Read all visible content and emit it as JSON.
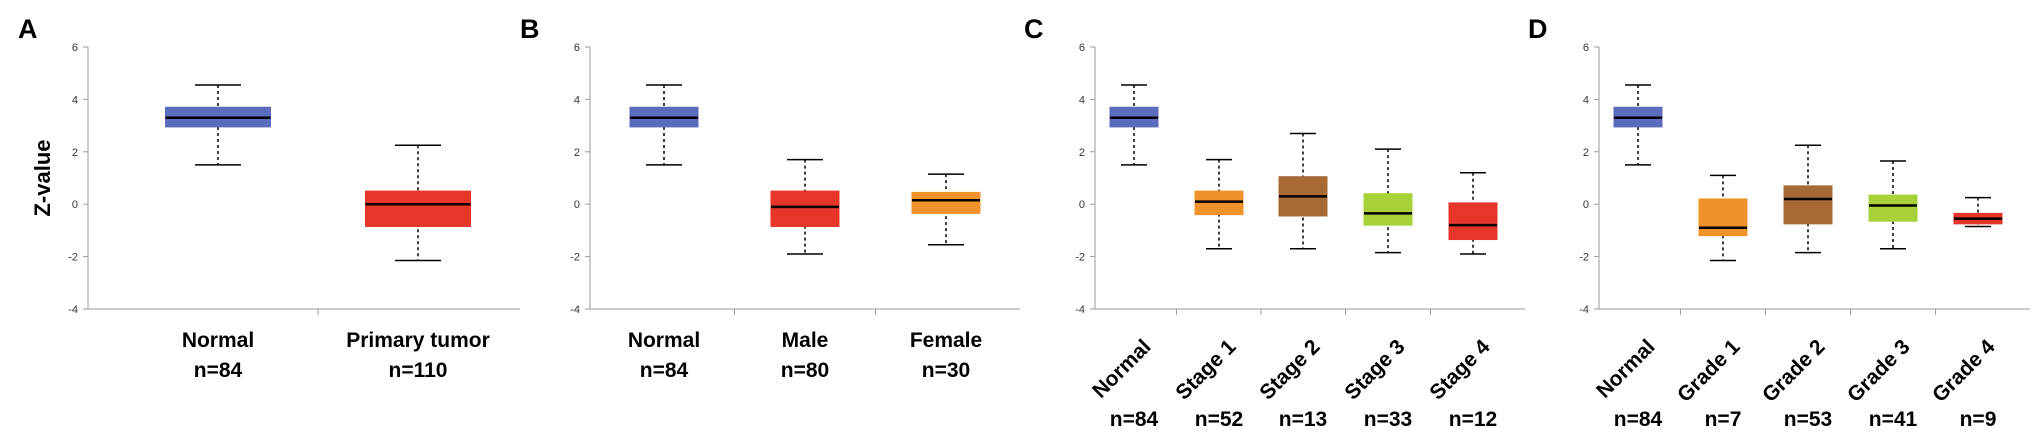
{
  "chart_data": [
    {
      "type": "box",
      "panel": "A",
      "ylabel": "Z-value",
      "ylim": [
        -4,
        6
      ],
      "yticks": [
        "6",
        "4",
        "2",
        "0",
        "-2",
        "-4"
      ],
      "label_rotation": "none",
      "groups": [
        {
          "label": "Normal",
          "n": "n=84",
          "color": "#5b6bbd",
          "min": 1.5,
          "q1": 2.95,
          "median": 3.3,
          "q3": 3.7,
          "max": 4.55
        },
        {
          "label": "Primary tumor",
          "n": "n=110",
          "color": "#e8352a",
          "min": -2.15,
          "q1": -0.85,
          "median": 0.0,
          "q3": 0.5,
          "max": 2.25
        }
      ]
    },
    {
      "type": "box",
      "panel": "B",
      "ylabel": "",
      "ylim": [
        -4,
        6
      ],
      "yticks": [
        "6",
        "4",
        "2",
        "0",
        "-2",
        "-4"
      ],
      "label_rotation": "none",
      "groups": [
        {
          "label": "Normal",
          "n": "n=84",
          "color": "#5b6bbd",
          "min": 1.5,
          "q1": 2.95,
          "median": 3.3,
          "q3": 3.7,
          "max": 4.55
        },
        {
          "label": "Male",
          "n": "n=80",
          "color": "#e8352a",
          "min": -1.9,
          "q1": -0.85,
          "median": -0.1,
          "q3": 0.5,
          "max": 1.7
        },
        {
          "label": "Female",
          "n": "n=30",
          "color": "#f0922b",
          "min": -1.55,
          "q1": -0.35,
          "median": 0.15,
          "q3": 0.45,
          "max": 1.15
        }
      ]
    },
    {
      "type": "box",
      "panel": "C",
      "ylabel": "",
      "ylim": [
        -4,
        6
      ],
      "yticks": [
        "6",
        "4",
        "2",
        "0",
        "-2",
        "-4"
      ],
      "label_rotation": "rotated",
      "groups": [
        {
          "label": "Normal",
          "n": "n=84",
          "color": "#5b6bbd",
          "min": 1.5,
          "q1": 2.95,
          "median": 3.3,
          "q3": 3.7,
          "max": 4.55
        },
        {
          "label": "Stage 1",
          "n": "n=52",
          "color": "#f0922b",
          "min": -1.7,
          "q1": -0.4,
          "median": 0.1,
          "q3": 0.5,
          "max": 1.7
        },
        {
          "label": "Stage 2",
          "n": "n=13",
          "color": "#a86a35",
          "min": -1.7,
          "q1": -0.45,
          "median": 0.3,
          "q3": 1.05,
          "max": 2.7
        },
        {
          "label": "Stage 3",
          "n": "n=33",
          "color": "#a8d13a",
          "min": -1.85,
          "q1": -0.8,
          "median": -0.35,
          "q3": 0.4,
          "max": 2.1
        },
        {
          "label": "Stage 4",
          "n": "n=12",
          "color": "#e8352a",
          "min": -1.9,
          "q1": -1.35,
          "median": -0.8,
          "q3": 0.05,
          "max": 1.2
        }
      ]
    },
    {
      "type": "box",
      "panel": "D",
      "ylabel": "",
      "ylim": [
        -4,
        6
      ],
      "yticks": [
        "6",
        "4",
        "2",
        "0",
        "-2",
        "-4"
      ],
      "label_rotation": "rotated",
      "groups": [
        {
          "label": "Normal",
          "n": "n=84",
          "color": "#5b6bbd",
          "min": 1.5,
          "q1": 2.95,
          "median": 3.3,
          "q3": 3.7,
          "max": 4.55
        },
        {
          "label": "Grade 1",
          "n": "n=7",
          "color": "#f0922b",
          "min": -2.15,
          "q1": -1.2,
          "median": -0.9,
          "q3": 0.2,
          "max": 1.1
        },
        {
          "label": "Grade 2",
          "n": "n=53",
          "color": "#a86a35",
          "min": -1.85,
          "q1": -0.75,
          "median": 0.2,
          "q3": 0.7,
          "max": 2.25
        },
        {
          "label": "Grade 3",
          "n": "n=41",
          "color": "#a8d13a",
          "min": -1.7,
          "q1": -0.65,
          "median": -0.05,
          "q3": 0.35,
          "max": 1.65
        },
        {
          "label": "Grade 4",
          "n": "n=9",
          "color": "#e8352a",
          "min": -0.85,
          "q1": -0.75,
          "median": -0.55,
          "q3": -0.35,
          "max": 0.25
        }
      ]
    }
  ]
}
